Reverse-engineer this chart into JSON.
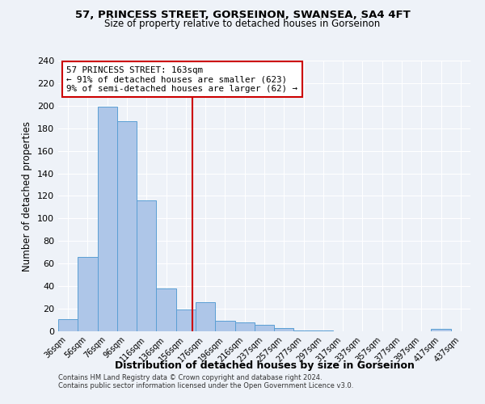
{
  "title": "57, PRINCESS STREET, GORSEINON, SWANSEA, SA4 4FT",
  "subtitle": "Size of property relative to detached houses in Gorseinon",
  "xlabel": "Distribution of detached houses by size in Gorseinon",
  "ylabel": "Number of detached properties",
  "bar_labels": [
    "36sqm",
    "56sqm",
    "76sqm",
    "96sqm",
    "116sqm",
    "136sqm",
    "156sqm",
    "176sqm",
    "196sqm",
    "216sqm",
    "237sqm",
    "257sqm",
    "277sqm",
    "297sqm",
    "317sqm",
    "337sqm",
    "357sqm",
    "377sqm",
    "397sqm",
    "417sqm",
    "437sqm"
  ],
  "bar_values": [
    11,
    66,
    199,
    186,
    116,
    38,
    19,
    26,
    9,
    8,
    6,
    3,
    1,
    1,
    0,
    0,
    0,
    0,
    0,
    2,
    0
  ],
  "bar_color": "#aec6e8",
  "bar_edge_color": "#5a9fd4",
  "vline_x_index": 6.35,
  "vline_color": "#cc0000",
  "annotation_line1": "57 PRINCESS STREET: 163sqm",
  "annotation_line2": "← 91% of detached houses are smaller (623)",
  "annotation_line3": "9% of semi-detached houses are larger (62) →",
  "annotation_box_color": "#ffffff",
  "annotation_box_edge_color": "#cc0000",
  "ylim": [
    0,
    240
  ],
  "yticks": [
    0,
    20,
    40,
    60,
    80,
    100,
    120,
    140,
    160,
    180,
    200,
    220,
    240
  ],
  "footnote1": "Contains HM Land Registry data © Crown copyright and database right 2024.",
  "footnote2": "Contains public sector information licensed under the Open Government Licence v3.0.",
  "bg_color": "#eef2f8"
}
